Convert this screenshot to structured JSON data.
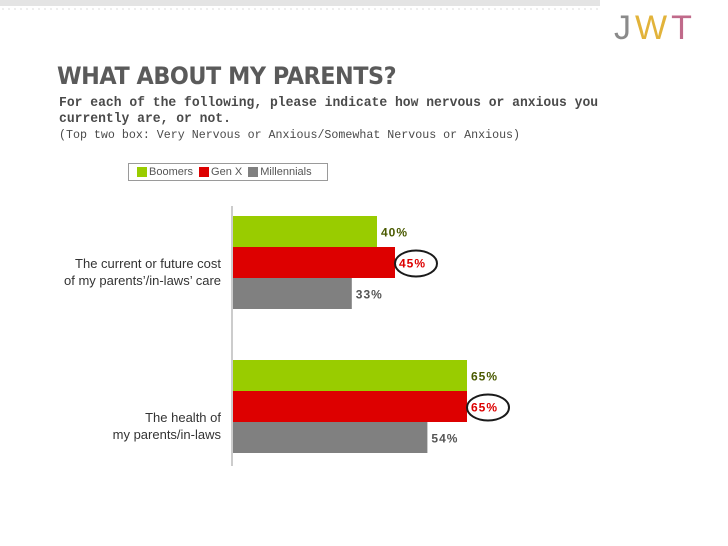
{
  "logo": {
    "letters": [
      "J",
      "W",
      "T"
    ]
  },
  "header": {
    "title": "WHAT ABOUT MY PARENTS?",
    "subtitle": "For each of the following, please indicate how nervous or anxious you currently are, or not.",
    "note": "(Top two box: Very Nervous or Anxious/Somewhat Nervous or Anxious)"
  },
  "colors": {
    "Boomers": "#99cc00",
    "Gen X": "#dd0000",
    "Millennials": "#808080",
    "highlight_ring": "#1a1a1a"
  },
  "chart_data": {
    "type": "bar",
    "orientation": "horizontal",
    "categories": [
      [
        "The current or future cost",
        "of my parents’/in-laws’ care"
      ],
      [
        "The health of",
        "my parents/in-laws"
      ]
    ],
    "series": [
      {
        "name": "Boomers",
        "values": [
          40,
          65
        ],
        "labels": [
          "40%",
          "65%"
        ]
      },
      {
        "name": "Gen X",
        "values": [
          45,
          65
        ],
        "labels": [
          "45%",
          "65%"
        ]
      },
      {
        "name": "Millennials",
        "values": [
          33,
          54
        ],
        "labels": [
          "33%",
          "54%"
        ]
      }
    ],
    "xlim": [
      0,
      100
    ],
    "highlighted_series": "Gen X",
    "legend": "top",
    "grid": false
  }
}
